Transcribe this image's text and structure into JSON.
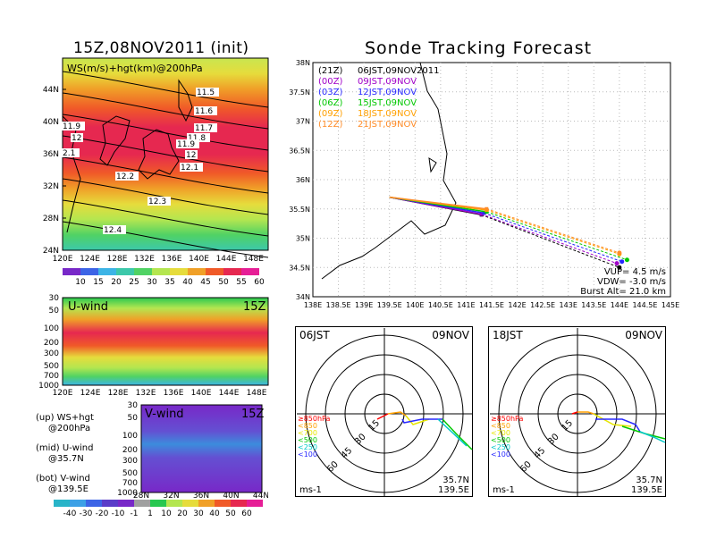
{
  "left_panel": {
    "title": "15Z,08NOV2011 (init)",
    "map_label": "WS(m/s)+hgt(km)@200hPa",
    "lon_ticks": [
      "120E",
      "124E",
      "128E",
      "132E",
      "136E",
      "140E",
      "144E",
      "148E"
    ],
    "lat_ticks": [
      "44N",
      "40N",
      "36N",
      "32N",
      "28N",
      "24N"
    ],
    "contour_labels": [
      "11.5",
      "11.6",
      "11.7",
      "11.8",
      "11.9",
      "12",
      "12.1",
      "11.9",
      "12",
      "2.1",
      "12.2",
      "12.3",
      "12.4"
    ],
    "colorbar_ticks": [
      "10",
      "15",
      "20",
      "25",
      "30",
      "35",
      "40",
      "45",
      "50",
      "55",
      "60"
    ],
    "uwind": {
      "label": "U-wind",
      "time": "15Z",
      "pressure_ticks": [
        "30",
        "50",
        "100",
        "200",
        "300",
        "500",
        "700",
        "1000"
      ],
      "lon_ticks": [
        "120E",
        "124E",
        "128E",
        "132E",
        "136E",
        "140E",
        "144E",
        "148E"
      ]
    },
    "vwind": {
      "label": "V-wind",
      "time": "15Z",
      "pressure_ticks": [
        "30",
        "50",
        "100",
        "200",
        "300",
        "500",
        "700",
        "1000"
      ],
      "lat_ticks": [
        "28N",
        "32N",
        "36N",
        "40N",
        "44N"
      ]
    },
    "legend_text": {
      "up1": "(up) WS+hgt",
      "up2": "@200hPa",
      "mid1": "(mid) U-wind",
      "mid2": "@35.7N",
      "bot1": "(bot) V-wind",
      "bot2": "@139.5E"
    },
    "bottom_colorbar_ticks": [
      "-40",
      "-30",
      "-20",
      "-10",
      "-1",
      "1",
      "10",
      "20",
      "30",
      "40",
      "50",
      "60"
    ]
  },
  "right_panel": {
    "title": "Sonde Tracking Forecast",
    "chart_data": {
      "type": "line",
      "xlim": [
        138,
        145
      ],
      "ylim": [
        34,
        38
      ],
      "x_ticks": [
        "138E",
        "138.5E",
        "139E",
        "139.5E",
        "140E",
        "140.5E",
        "141E",
        "141.5E",
        "142E",
        "142.5E",
        "143E",
        "143.5E",
        "144E",
        "144.5E",
        "145E"
      ],
      "y_ticks": [
        "38N",
        "37.5N",
        "37N",
        "36.5N",
        "36N",
        "35.5N",
        "35N",
        "34.5N",
        "34N"
      ],
      "legend": [
        {
          "code": "(21Z)",
          "time": "06JST,09NOV2011",
          "color": "#000000"
        },
        {
          "code": "(00Z)",
          "time": "09JST,09NOV",
          "color": "#a000c8"
        },
        {
          "code": "(03Z)",
          "time": "12JST,09NOV",
          "color": "#2828ff"
        },
        {
          "code": "(06Z)",
          "time": "15JST,09NOV",
          "color": "#00c800"
        },
        {
          "code": "(09Z)",
          "time": "18JST,09NOV",
          "color": "#ffa000"
        },
        {
          "code": "(12Z)",
          "time": "21JST,09NOV",
          "color": "#ff8c28"
        }
      ],
      "launch": [
        139.5,
        35.7
      ],
      "series": [
        {
          "color": "#000000",
          "ascent": [
            [
              139.5,
              35.7
            ],
            [
              141.3,
              35.4
            ]
          ],
          "descent": [
            [
              141.3,
              35.4
            ],
            [
              144.0,
              34.5
            ]
          ]
        },
        {
          "color": "#a000c8",
          "ascent": [
            [
              139.5,
              35.7
            ],
            [
              141.3,
              35.41
            ]
          ],
          "descent": [
            [
              141.3,
              35.41
            ],
            [
              143.95,
              34.57
            ]
          ]
        },
        {
          "color": "#2828ff",
          "ascent": [
            [
              139.5,
              35.7
            ],
            [
              141.35,
              35.43
            ]
          ],
          "descent": [
            [
              141.35,
              35.43
            ],
            [
              144.05,
              34.6
            ]
          ]
        },
        {
          "color": "#00c800",
          "ascent": [
            [
              139.5,
              35.7
            ],
            [
              141.4,
              35.45
            ]
          ],
          "descent": [
            [
              141.4,
              35.45
            ],
            [
              144.15,
              34.63
            ]
          ]
        },
        {
          "color": "#ffa000",
          "ascent": [
            [
              139.5,
              35.7
            ],
            [
              141.4,
              35.48
            ]
          ],
          "descent": [
            [
              141.4,
              35.48
            ],
            [
              144.0,
              34.73
            ]
          ]
        },
        {
          "color": "#ff8c28",
          "ascent": [
            [
              139.5,
              35.7
            ],
            [
              141.4,
              35.5
            ]
          ],
          "descent": [
            [
              141.4,
              35.5
            ],
            [
              144.0,
              34.75
            ]
          ]
        }
      ],
      "params": {
        "vup": "VUP= 4.5 m/s",
        "vdw": "VDW= -3.0 m/s",
        "burst": "Burst Alt= 21.0 km"
      }
    },
    "hodo_left": {
      "time": "06JST",
      "date": "09NOV",
      "rings": [
        "15",
        "30",
        "45",
        "60"
      ],
      "plevels": [
        {
          "text": "≥850hPa",
          "color": "#ff0000"
        },
        {
          "text": "<850",
          "color": "#ffa000"
        },
        {
          "text": "<700",
          "color": "#e6e600"
        },
        {
          "text": "<500",
          "color": "#00c800"
        },
        {
          "text": "<250",
          "color": "#00c8c8"
        },
        {
          "text": "<100",
          "color": "#2828ff"
        }
      ],
      "unit": "ms-1",
      "lat": "35.7N",
      "lon": "139.5E"
    },
    "hodo_right": {
      "time": "18JST",
      "date": "09NOV",
      "rings": [
        "15",
        "30",
        "45",
        "60"
      ],
      "plevels": [
        {
          "text": "≥850hPa",
          "color": "#ff0000"
        },
        {
          "text": "<850",
          "color": "#ffa000"
        },
        {
          "text": "<700",
          "color": "#e6e600"
        },
        {
          "text": "<500",
          "color": "#00c800"
        },
        {
          "text": "<250",
          "color": "#00c8c8"
        },
        {
          "text": "<100",
          "color": "#2828ff"
        }
      ],
      "unit": "ms-1",
      "lat": "35.7N",
      "lon": "139.5E"
    }
  }
}
